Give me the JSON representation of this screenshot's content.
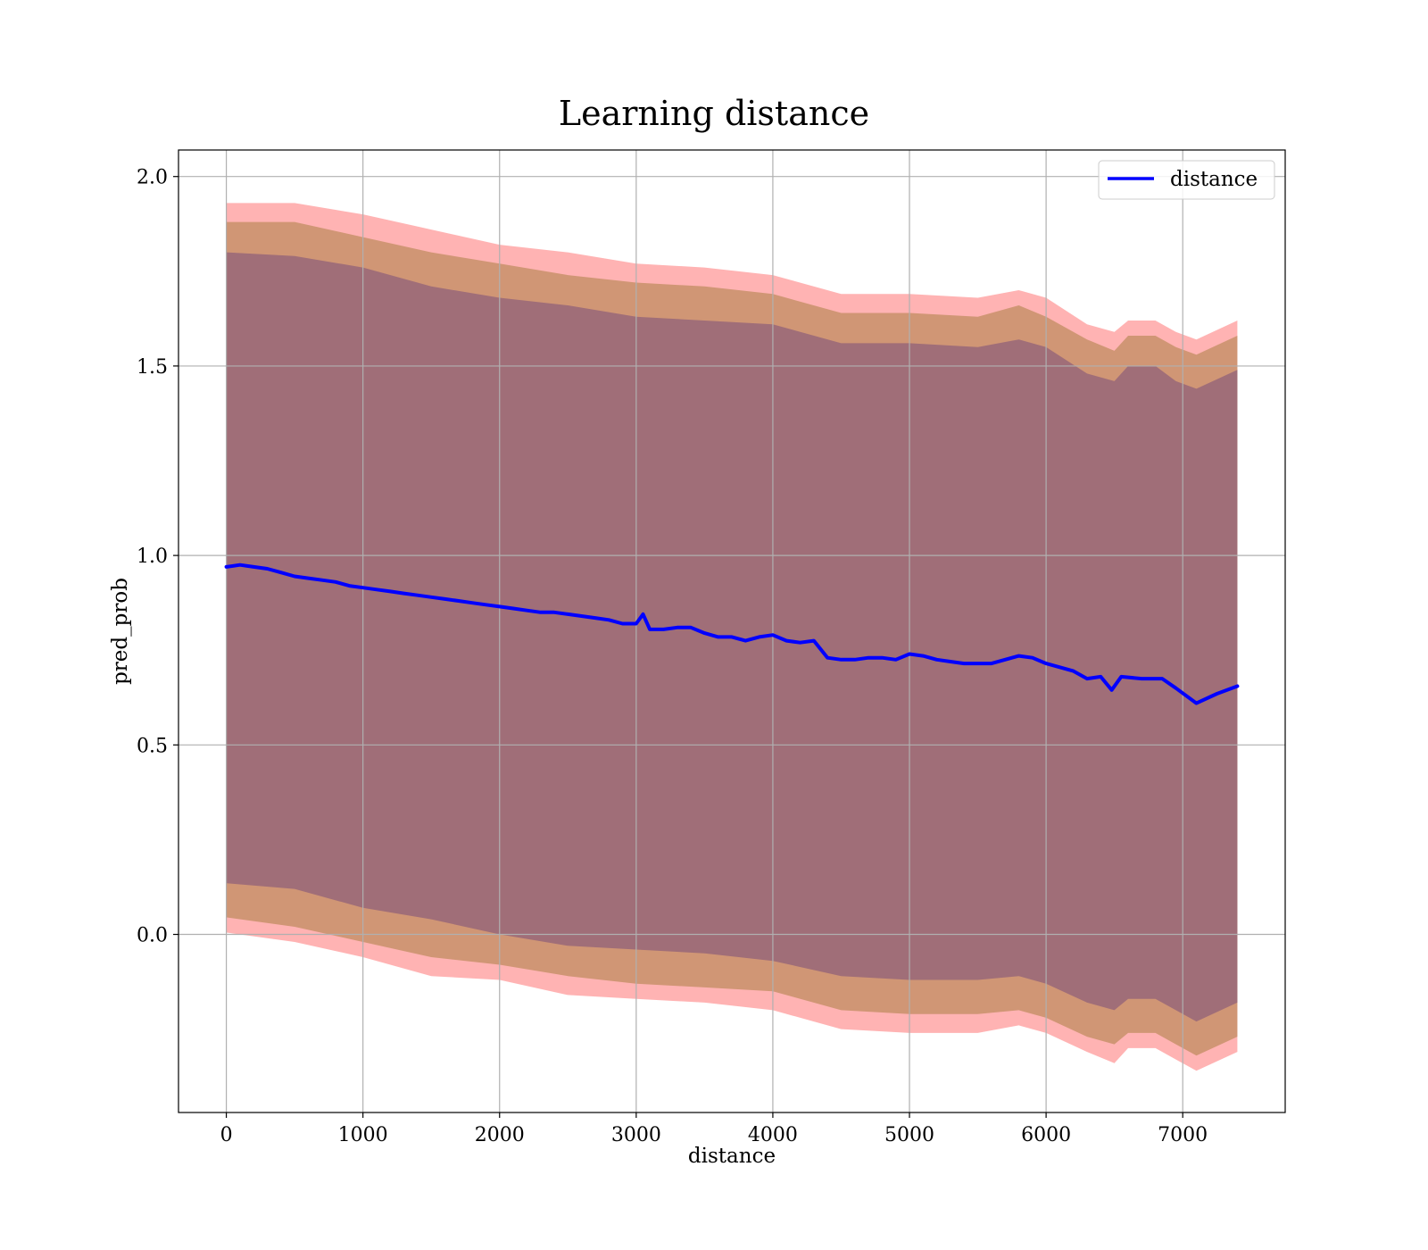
{
  "chart_data": {
    "type": "line",
    "title": "Learning distance",
    "xlabel": "distance",
    "ylabel": "pred_prob",
    "xlim": [
      -350,
      7750
    ],
    "ylim": [
      -0.47,
      2.07
    ],
    "xticks": [
      0,
      1000,
      2000,
      3000,
      4000,
      5000,
      6000,
      7000
    ],
    "xtick_labels": [
      "0",
      "1000",
      "2000",
      "3000",
      "4000",
      "5000",
      "6000",
      "7000"
    ],
    "yticks": [
      0.0,
      0.5,
      1.0,
      1.5,
      2.0
    ],
    "ytick_labels": [
      "0.0",
      "0.5",
      "1.0",
      "1.5",
      "2.0"
    ],
    "grid": true,
    "legend": {
      "position": "top-right",
      "entries": [
        "distance"
      ]
    },
    "colors": {
      "line": "#0000ff",
      "band_outer": "#ff8080",
      "band_middle": "#c8906a",
      "band_inner": "#a06e78",
      "grid": "#b0b0b0"
    },
    "series": [
      {
        "name": "distance",
        "x": [
          0,
          100,
          200,
          300,
          400,
          500,
          600,
          700,
          800,
          900,
          1000,
          1100,
          1200,
          1300,
          1400,
          1500,
          1600,
          1700,
          1800,
          1900,
          2000,
          2100,
          2200,
          2300,
          2400,
          2500,
          2600,
          2700,
          2800,
          2900,
          3000,
          3050,
          3100,
          3200,
          3300,
          3400,
          3500,
          3600,
          3700,
          3800,
          3900,
          4000,
          4100,
          4200,
          4300,
          4400,
          4500,
          4600,
          4700,
          4800,
          4900,
          5000,
          5100,
          5200,
          5300,
          5400,
          5500,
          5600,
          5700,
          5800,
          5900,
          6000,
          6100,
          6200,
          6300,
          6400,
          6480,
          6550,
          6700,
          6850,
          6950,
          7100,
          7250,
          7400
        ],
        "y": [
          0.97,
          0.975,
          0.97,
          0.965,
          0.955,
          0.945,
          0.94,
          0.935,
          0.93,
          0.92,
          0.915,
          0.91,
          0.905,
          0.9,
          0.895,
          0.89,
          0.885,
          0.88,
          0.875,
          0.87,
          0.865,
          0.86,
          0.855,
          0.85,
          0.85,
          0.845,
          0.84,
          0.835,
          0.83,
          0.82,
          0.82,
          0.845,
          0.805,
          0.805,
          0.81,
          0.81,
          0.795,
          0.785,
          0.785,
          0.775,
          0.785,
          0.79,
          0.775,
          0.77,
          0.775,
          0.73,
          0.725,
          0.725,
          0.73,
          0.73,
          0.725,
          0.74,
          0.735,
          0.725,
          0.72,
          0.715,
          0.715,
          0.715,
          0.725,
          0.735,
          0.73,
          0.715,
          0.705,
          0.695,
          0.675,
          0.68,
          0.645,
          0.68,
          0.675,
          0.675,
          0.65,
          0.61,
          0.635,
          0.655
        ]
      },
      {
        "name": "",
        "role": "outer band",
        "x": [
          0,
          500,
          1000,
          1500,
          2000,
          2500,
          3000,
          3500,
          4000,
          4500,
          5000,
          5500,
          5800,
          6000,
          6300,
          6500,
          6600,
          6800,
          6950,
          7100,
          7400
        ],
        "upper": [
          1.93,
          1.93,
          1.9,
          1.86,
          1.82,
          1.8,
          1.77,
          1.76,
          1.74,
          1.69,
          1.69,
          1.68,
          1.7,
          1.68,
          1.61,
          1.59,
          1.62,
          1.62,
          1.59,
          1.57,
          1.62
        ],
        "lower": [
          0.005,
          -0.02,
          -0.06,
          -0.11,
          -0.12,
          -0.16,
          -0.17,
          -0.18,
          -0.2,
          -0.25,
          -0.26,
          -0.26,
          -0.24,
          -0.26,
          -0.31,
          -0.34,
          -0.3,
          -0.3,
          -0.33,
          -0.36,
          -0.31
        ]
      },
      {
        "name": "",
        "role": "middle band",
        "x": [
          0,
          500,
          1000,
          1500,
          2000,
          2500,
          3000,
          3500,
          4000,
          4500,
          5000,
          5500,
          5800,
          6000,
          6300,
          6500,
          6600,
          6800,
          6950,
          7100,
          7400
        ],
        "upper": [
          1.88,
          1.88,
          1.84,
          1.8,
          1.77,
          1.74,
          1.72,
          1.71,
          1.69,
          1.64,
          1.64,
          1.63,
          1.66,
          1.63,
          1.57,
          1.54,
          1.58,
          1.58,
          1.55,
          1.53,
          1.58
        ],
        "lower": [
          0.045,
          0.02,
          -0.02,
          -0.06,
          -0.08,
          -0.11,
          -0.13,
          -0.14,
          -0.15,
          -0.2,
          -0.21,
          -0.21,
          -0.2,
          -0.22,
          -0.27,
          -0.29,
          -0.26,
          -0.26,
          -0.29,
          -0.32,
          -0.27
        ]
      },
      {
        "name": "",
        "role": "inner band",
        "x": [
          0,
          500,
          1000,
          1500,
          2000,
          2500,
          3000,
          3500,
          4000,
          4500,
          5000,
          5500,
          5800,
          6000,
          6300,
          6500,
          6600,
          6800,
          6950,
          7100,
          7400
        ],
        "upper": [
          1.8,
          1.79,
          1.76,
          1.71,
          1.68,
          1.66,
          1.63,
          1.62,
          1.61,
          1.56,
          1.56,
          1.55,
          1.57,
          1.55,
          1.48,
          1.46,
          1.5,
          1.5,
          1.46,
          1.44,
          1.49
        ],
        "lower": [
          0.135,
          0.12,
          0.07,
          0.04,
          0.0,
          -0.03,
          -0.04,
          -0.05,
          -0.07,
          -0.11,
          -0.12,
          -0.12,
          -0.11,
          -0.13,
          -0.18,
          -0.2,
          -0.17,
          -0.17,
          -0.2,
          -0.23,
          -0.18
        ]
      }
    ]
  }
}
